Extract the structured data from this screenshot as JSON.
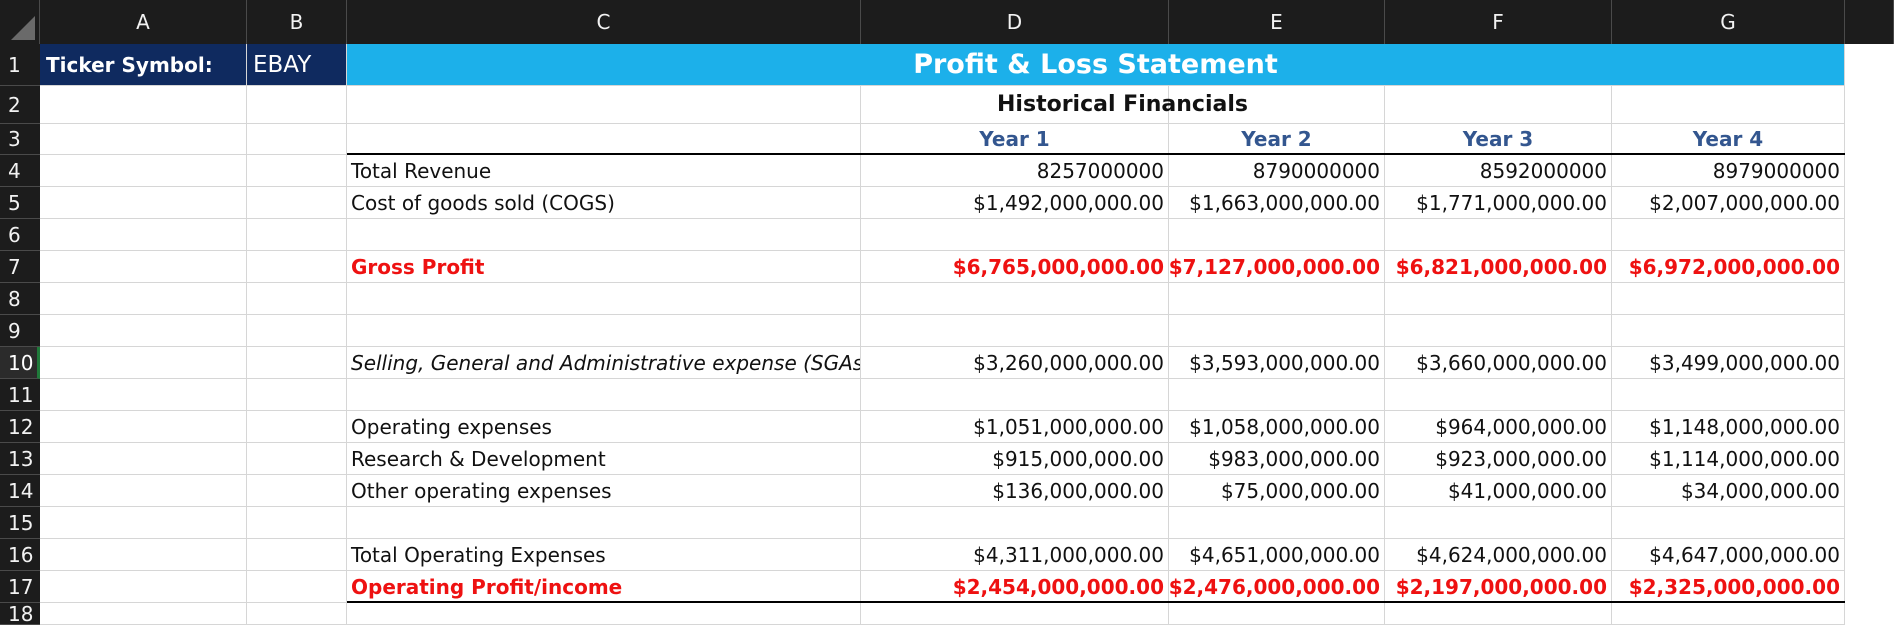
{
  "columns": [
    "A",
    "B",
    "C",
    "D",
    "E",
    "F",
    "G"
  ],
  "rows": [
    "1",
    "2",
    "3",
    "4",
    "5",
    "6",
    "7",
    "8",
    "9",
    "10",
    "11",
    "12",
    "13",
    "14",
    "15",
    "16",
    "17",
    "18"
  ],
  "selected_row": "10",
  "ticker": {
    "label": "Ticker Symbol:",
    "value": "EBAY"
  },
  "title": "Profit & Loss Statement",
  "subtitle": "Historical Financials",
  "years": [
    "Year 1",
    "Year 2",
    "Year 3",
    "Year 4"
  ],
  "colors": {
    "banner": "#1cb0ea",
    "ticker_bg": "#0f2a5f",
    "highlight": "#ee1111",
    "year_text": "#33568f"
  },
  "lines": [
    {
      "row": 4,
      "label": "Total Revenue",
      "values": [
        "8257000000",
        "8790000000",
        "8592000000",
        "8979000000"
      ]
    },
    {
      "row": 5,
      "label": "Cost of goods sold (COGS)",
      "values": [
        "$1,492,000,000.00",
        "$1,663,000,000.00",
        "$1,771,000,000.00",
        "$2,007,000,000.00"
      ]
    },
    {
      "row": 7,
      "label": "Gross Profit",
      "values": [
        "$6,765,000,000.00",
        "$7,127,000,000.00",
        "$6,821,000,000.00",
        "$6,972,000,000.00"
      ],
      "style": "red"
    },
    {
      "row": 10,
      "label": "Selling, General and Administrative expense (SGAs)",
      "values": [
        "$3,260,000,000.00",
        "$3,593,000,000.00",
        "$3,660,000,000.00",
        "$3,499,000,000.00"
      ],
      "style": "italic"
    },
    {
      "row": 12,
      "label": "Operating expenses",
      "values": [
        "$1,051,000,000.00",
        "$1,058,000,000.00",
        "$964,000,000.00",
        "$1,148,000,000.00"
      ]
    },
    {
      "row": 13,
      "label": "Research & Development",
      "values": [
        "$915,000,000.00",
        "$983,000,000.00",
        "$923,000,000.00",
        "$1,114,000,000.00"
      ]
    },
    {
      "row": 14,
      "label": "Other operating expenses",
      "values": [
        "$136,000,000.00",
        "$75,000,000.00",
        "$41,000,000.00",
        "$34,000,000.00"
      ]
    },
    {
      "row": 16,
      "label": "Total Operating Expenses",
      "values": [
        "$4,311,000,000.00",
        "$4,651,000,000.00",
        "$4,624,000,000.00",
        "$4,647,000,000.00"
      ]
    },
    {
      "row": 17,
      "label": "Operating Profit/income",
      "values": [
        "$2,454,000,000.00",
        "$2,476,000,000.00",
        "$2,197,000,000.00",
        "$2,325,000,000.00"
      ],
      "style": "red"
    }
  ]
}
